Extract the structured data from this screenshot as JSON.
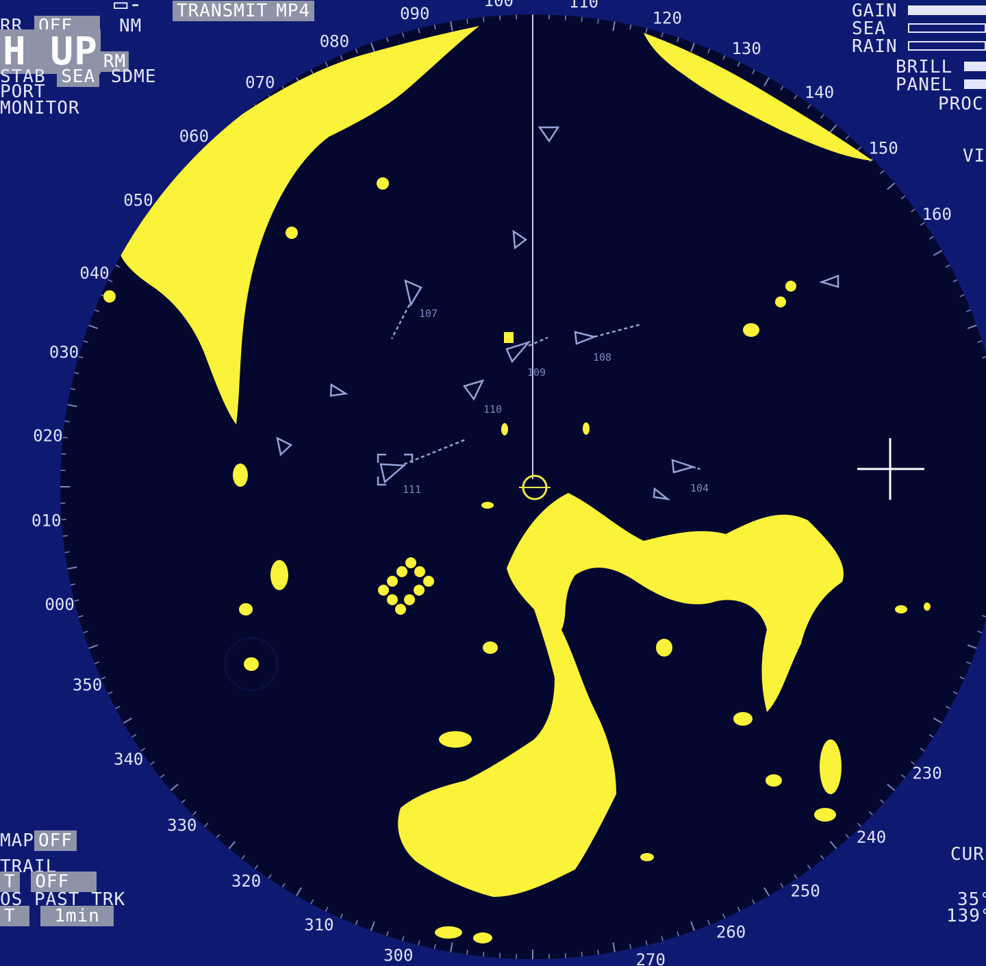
{
  "colors": {
    "background": "#0e1a72",
    "scope_face": "#05082e",
    "echo": "#fbf23a",
    "range_ring": "#7d88c2",
    "target_symbol": "#95a3d8",
    "heading_line": "#c8cde6",
    "highlight": "#8e93a8",
    "text": "#e4e7fb"
  },
  "top_left": {
    "line1_icon": "transmit-mode-icon",
    "transmit_label": "TRANSMIT",
    "transmit_mode": "MP4",
    "rr_label": "RR",
    "rr_value": "OFF",
    "range_unit": "NM",
    "orientation": "H UP",
    "orientation_mode": "RM",
    "stab_label": "STAB",
    "stab_value": "SEA",
    "stab_source": "SDME",
    "port_label": "PORT",
    "monitor_label": "MONITOR"
  },
  "top_right": {
    "gain_label": "GAIN",
    "gain_level": 1.0,
    "sea_label": "SEA",
    "sea_level": 0.0,
    "rain_label": "RAIN",
    "rain_level": 0.0,
    "brill_label": "BRILL",
    "panel_label": "PANEL",
    "proc_label": "PROC",
    "vi_label": "VI"
  },
  "bottom_left": {
    "map_label": "MAP",
    "map_value": "OFF",
    "trail_label": "TRAIL",
    "trail_prefix": "T",
    "trail_value": "OFF",
    "past_trk_prefix": "OS",
    "past_trk_label": "PAST TRK",
    "past_trk_flag": "T",
    "past_trk_value": "1min"
  },
  "bottom_right": {
    "cursor_label": "CUR",
    "lat": "35°",
    "lon": "139°"
  },
  "bearing_scale": {
    "labels": [
      {
        "text": "100",
        "bearing": 100
      },
      {
        "text": "110",
        "bearing": 110
      },
      {
        "text": "120",
        "bearing": 120
      },
      {
        "text": "130",
        "bearing": 130
      },
      {
        "text": "140",
        "bearing": 140
      },
      {
        "text": "150",
        "bearing": 150
      },
      {
        "text": "160",
        "bearing": 160
      },
      {
        "text": "230",
        "bearing": 230
      },
      {
        "text": "240",
        "bearing": 240
      },
      {
        "text": "250",
        "bearing": 250
      },
      {
        "text": "260",
        "bearing": 260
      },
      {
        "text": "270",
        "bearing": 270
      },
      {
        "text": "300",
        "bearing": 300
      },
      {
        "text": "310",
        "bearing": 310
      },
      {
        "text": "320",
        "bearing": 320
      },
      {
        "text": "330",
        "bearing": 330
      },
      {
        "text": "340",
        "bearing": 340
      },
      {
        "text": "350",
        "bearing": 350
      },
      {
        "text": "000",
        "bearing": 0
      },
      {
        "text": "010",
        "bearing": 10
      },
      {
        "text": "020",
        "bearing": 20
      },
      {
        "text": "030",
        "bearing": 30
      },
      {
        "text": "040",
        "bearing": 40
      },
      {
        "text": "050",
        "bearing": 50
      },
      {
        "text": "060",
        "bearing": 60
      },
      {
        "text": "070",
        "bearing": 70
      },
      {
        "text": "080",
        "bearing": 80
      },
      {
        "text": "090",
        "bearing": 90
      }
    ]
  },
  "targets": [
    {
      "id": "107",
      "label": "107"
    },
    {
      "id": "109",
      "label": "109"
    },
    {
      "id": "108",
      "label": "108"
    },
    {
      "id": "110",
      "label": "110"
    },
    {
      "id": "111",
      "label": "111"
    },
    {
      "id": "104",
      "label": "104"
    }
  ]
}
